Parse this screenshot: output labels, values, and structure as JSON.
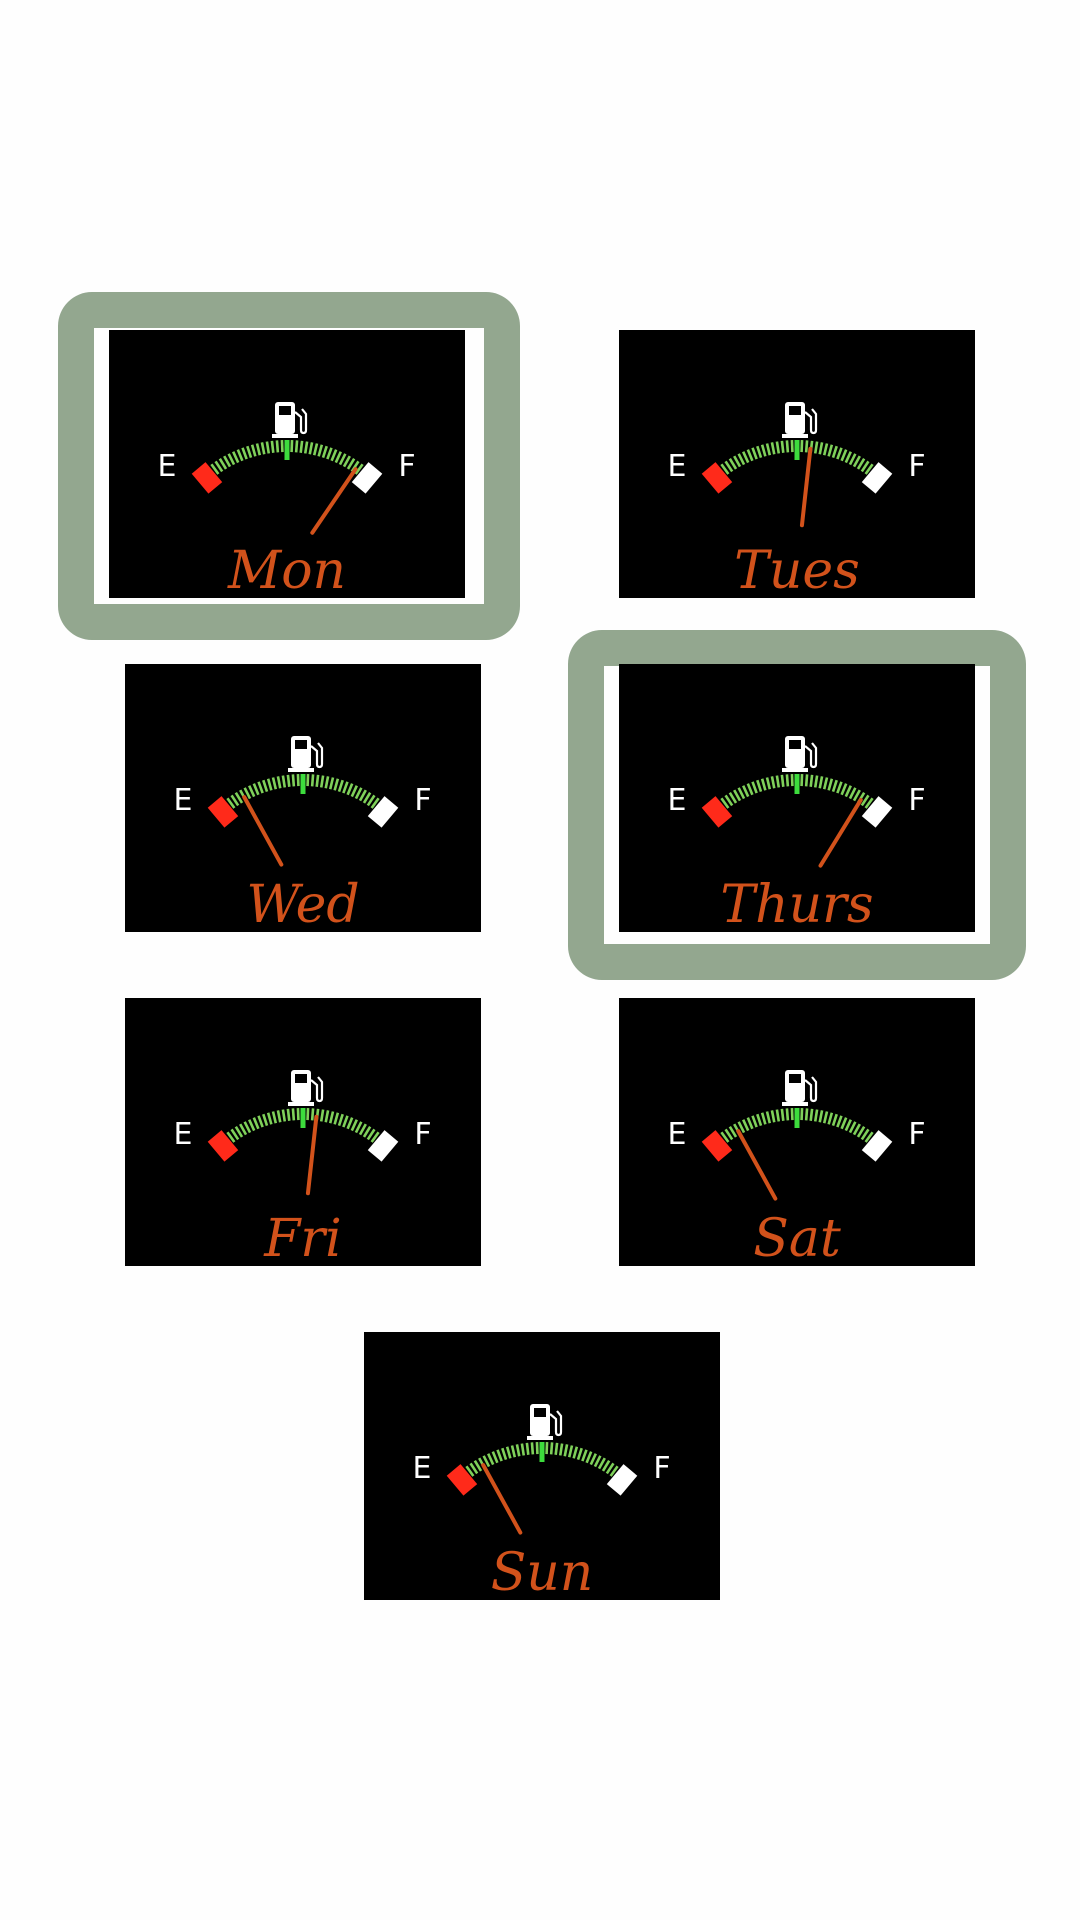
{
  "colors": {
    "background": "#fefefe",
    "gauge_face": "#000000",
    "tick_green": "#7fd15a",
    "tick_center": "#3ddc3d",
    "empty_marker": "#ff2a1a",
    "full_marker": "#ffffff",
    "scale_letters": "#ffffff",
    "needle": "#d2521b",
    "handwriting": "#d2521b",
    "highlight": "#93a78f"
  },
  "scale": {
    "empty_label": "E",
    "full_label": "F",
    "center_icon": "fuel-pump-icon"
  },
  "gauges": [
    {
      "id": "mon",
      "day": "Mon",
      "fuel_level": 0.88,
      "highlighted": true
    },
    {
      "id": "tues",
      "day": "Tues",
      "fuel_level": 0.57,
      "highlighted": false
    },
    {
      "id": "wed",
      "day": "Wed",
      "fuel_level": 0.18,
      "highlighted": false
    },
    {
      "id": "thurs",
      "day": "Thurs",
      "fuel_level": 0.85,
      "highlighted": true
    },
    {
      "id": "fri",
      "day": "Fri",
      "fuel_level": 0.57,
      "highlighted": false
    },
    {
      "id": "sat",
      "day": "Sat",
      "fuel_level": 0.18,
      "highlighted": false
    },
    {
      "id": "sun",
      "day": "Sun",
      "fuel_level": 0.18,
      "highlighted": false
    }
  ]
}
